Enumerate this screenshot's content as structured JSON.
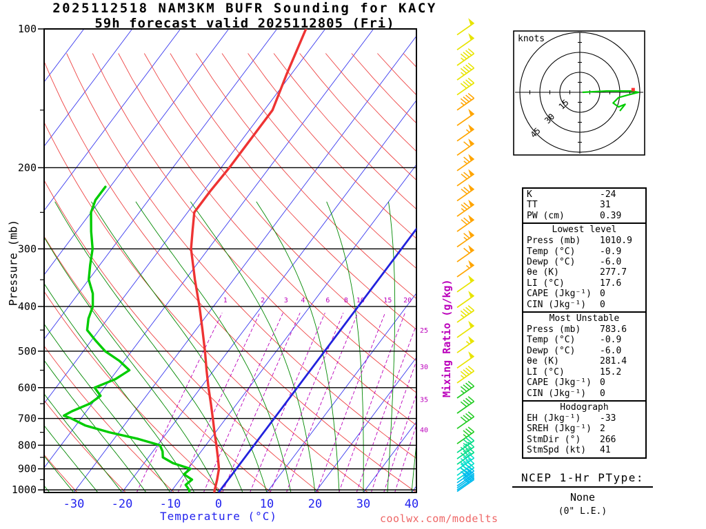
{
  "title": {
    "line1": "2025112518 NAM3KM BUFR Sounding for KACY",
    "line2": "59h forecast valid 2025112805 (Fri)"
  },
  "axes": {
    "pressure_label": "Pressure (mb)",
    "temp_label": "Temperature (°C)",
    "mixing_label": "Mixing Ratio (g/kg)",
    "pressure_ticks": [
      100,
      200,
      300,
      400,
      500,
      600,
      700,
      800,
      900,
      1000
    ],
    "pressure_minor_ticks": [
      150,
      250,
      350,
      450,
      550,
      650,
      750,
      850,
      950
    ],
    "temp_ticks": [
      -30,
      -20,
      -10,
      0,
      10,
      20,
      30,
      40
    ]
  },
  "watermark": "coolwx.com/modelts",
  "footer": {
    "line1": "NCEP 1-Hr PType:",
    "line2": "None",
    "line3": "(0\" L.E.)"
  },
  "stats": {
    "sections": [
      {
        "title": null,
        "rows": [
          [
            "K",
            "-24"
          ],
          [
            "TT",
            "31"
          ],
          [
            "PW (cm)",
            "0.39"
          ]
        ]
      },
      {
        "title": "Lowest level",
        "rows": [
          [
            "Press (mb)",
            "1010.9"
          ],
          [
            "Temp (°C)",
            "-0.9"
          ],
          [
            "Dewp (°C)",
            "-6.0"
          ],
          [
            "θe (K)",
            "277.7"
          ],
          [
            "LI (°C)",
            "17.6"
          ],
          [
            "CAPE (Jkg⁻¹)",
            "0"
          ],
          [
            "CIN (Jkg⁻¹)",
            "0"
          ]
        ]
      },
      {
        "title": "Most Unstable",
        "rows": [
          [
            "Press (mb)",
            "783.6"
          ],
          [
            "Temp (°C)",
            "-0.9"
          ],
          [
            "Dewp (°C)",
            "-6.0"
          ],
          [
            "θe (K)",
            "281.4"
          ],
          [
            "LI (°C)",
            "15.2"
          ],
          [
            "CAPE (Jkg⁻¹)",
            "0"
          ],
          [
            "CIN (Jkg⁻¹)",
            "0"
          ]
        ]
      },
      {
        "title": "Hodograph",
        "rows": [
          [
            "EH (Jkg⁻¹)",
            "-33"
          ],
          [
            "SREH (Jkg⁻¹)",
            "2"
          ],
          [
            "StmDir (°)",
            "266"
          ],
          [
            "StmSpd (kt)",
            "41"
          ]
        ]
      }
    ]
  },
  "chart_data": {
    "type": "skewt_log_p_sounding",
    "pressure_range": [
      100,
      1013
    ],
    "temp_axis_range": [
      -110,
      40
    ],
    "isotherm_step": 10,
    "mixing_ratio_lines": [
      1,
      2,
      3,
      4,
      6,
      8,
      10,
      15,
      20,
      25,
      30,
      35,
      40
    ],
    "temperature_profile": [
      [
        1013,
        -0.9
      ],
      [
        1000,
        -1.2
      ],
      [
        950,
        -2.3
      ],
      [
        900,
        -3.6
      ],
      [
        850,
        -5.6
      ],
      [
        800,
        -7.8
      ],
      [
        750,
        -10.2
      ],
      [
        700,
        -12.7
      ],
      [
        650,
        -15.4
      ],
      [
        600,
        -18.4
      ],
      [
        550,
        -21.5
      ],
      [
        500,
        -24.8
      ],
      [
        450,
        -28.6
      ],
      [
        400,
        -32.9
      ],
      [
        350,
        -38.0
      ],
      [
        300,
        -43.6
      ],
      [
        275,
        -46.0
      ],
      [
        250,
        -48.6
      ],
      [
        225,
        -48.6
      ],
      [
        200,
        -48.3
      ],
      [
        175,
        -48.3
      ],
      [
        150,
        -48.3
      ],
      [
        125,
        -51.0
      ],
      [
        100,
        -54.0
      ]
    ],
    "dewpoint_profile": [
      [
        1013,
        -6.0
      ],
      [
        1000,
        -6.5
      ],
      [
        975,
        -8.0
      ],
      [
        950,
        -7.5
      ],
      [
        925,
        -10.0
      ],
      [
        900,
        -9.5
      ],
      [
        875,
        -14.0
      ],
      [
        850,
        -17.0
      ],
      [
        825,
        -18.0
      ],
      [
        800,
        -19.5
      ],
      [
        775,
        -25.0
      ],
      [
        750,
        -32.0
      ],
      [
        725,
        -38.0
      ],
      [
        700,
        -42.0
      ],
      [
        690,
        -44.0
      ],
      [
        675,
        -43.0
      ],
      [
        650,
        -40.5
      ],
      [
        625,
        -39.5
      ],
      [
        600,
        -42.0
      ],
      [
        575,
        -39.0
      ],
      [
        550,
        -37.5
      ],
      [
        525,
        -41.0
      ],
      [
        500,
        -45.5
      ],
      [
        475,
        -49.0
      ],
      [
        450,
        -52.5
      ],
      [
        425,
        -54.0
      ],
      [
        400,
        -55.0
      ],
      [
        375,
        -57.0
      ],
      [
        350,
        -60.0
      ],
      [
        325,
        -62.0
      ],
      [
        300,
        -64.0
      ],
      [
        275,
        -67.0
      ],
      [
        250,
        -70.0
      ],
      [
        235,
        -71.0
      ],
      [
        220,
        -71.0
      ]
    ],
    "wind_barbs": [
      [
        103,
        50
      ],
      [
        111,
        50
      ],
      [
        120,
        45
      ],
      [
        129,
        45
      ],
      [
        139,
        40
      ],
      [
        150,
        45
      ],
      [
        162,
        50
      ],
      [
        175,
        55
      ],
      [
        188,
        60
      ],
      [
        203,
        65
      ],
      [
        219,
        70
      ],
      [
        236,
        70
      ],
      [
        255,
        75
      ],
      [
        275,
        70
      ],
      [
        297,
        65
      ],
      [
        320,
        60
      ],
      [
        345,
        55
      ],
      [
        372,
        50
      ],
      [
        402,
        50
      ],
      [
        433,
        45
      ],
      [
        467,
        50
      ],
      [
        504,
        55
      ],
      [
        544,
        50
      ],
      [
        586,
        45
      ],
      [
        632,
        45
      ],
      [
        682,
        40
      ],
      [
        736,
        40
      ],
      [
        794,
        35
      ],
      [
        830,
        35
      ],
      [
        856,
        40
      ],
      [
        880,
        40
      ],
      [
        905,
        45
      ],
      [
        930,
        45
      ],
      [
        950,
        40
      ],
      [
        965,
        40
      ],
      [
        980,
        35
      ],
      [
        990,
        35
      ],
      [
        1000,
        30
      ],
      [
        1008,
        25
      ]
    ],
    "barb_color_stops": [
      {
        "p_max": 146,
        "color": "#e8e400"
      },
      {
        "p_max": 352,
        "color": "#ffa500"
      },
      {
        "p_max": 598,
        "color": "#e8e400"
      },
      {
        "p_max": 802,
        "color": "#22cc22"
      },
      {
        "p_max": 884,
        "color": "#00dd88"
      },
      {
        "p_max": 957,
        "color": "#00ddcc"
      },
      {
        "p_max": 1020,
        "color": "#00bbee"
      }
    ],
    "hodograph": {
      "unit_label": "knots",
      "rings_kt": [
        15,
        30,
        45
      ],
      "trace_uv_kt": [
        [
          2,
          0
        ],
        [
          20,
          1
        ],
        [
          38,
          1
        ],
        [
          44,
          0
        ],
        [
          36,
          -2
        ],
        [
          29,
          -4
        ],
        [
          25,
          -8
        ],
        [
          29,
          -11
        ],
        [
          34,
          -9
        ],
        [
          30,
          -14
        ]
      ],
      "storm_motion_uv_kt": [
        40,
        2
      ]
    },
    "colors": {
      "isotherm": "#3a3aee",
      "isotherm_zero": "#2222dd",
      "dry_adiabat": "#ee4444",
      "moist_adiabat": "#008800",
      "mixing": "#bb00bb",
      "pressure_line": "#000000",
      "temp_curve": "#ee3333",
      "dewp_curve": "#00cc00",
      "temp_axis": "#2222ee"
    }
  }
}
